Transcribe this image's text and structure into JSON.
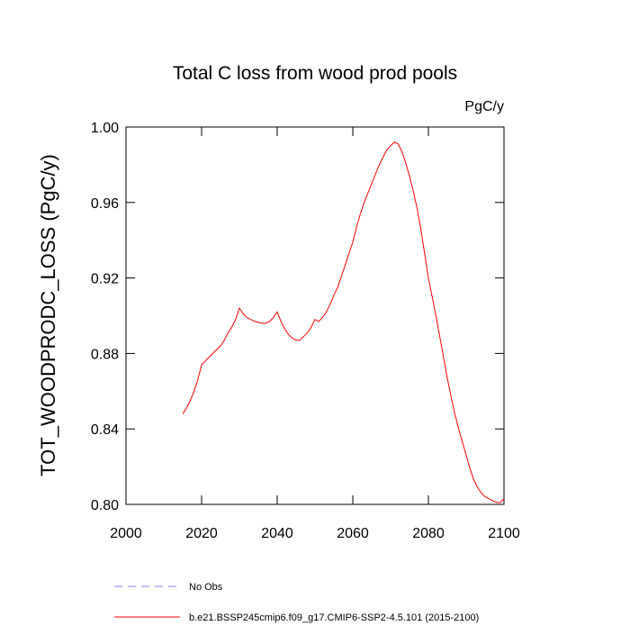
{
  "chart_data": {
    "type": "line",
    "title": "Total C loss from wood prod pools",
    "units": "PgC/y",
    "y_label": "TOT_WOODPRODC_LOSS  (PgC/y)",
    "x": [
      2015,
      2016,
      2017,
      2018,
      2019,
      2020,
      2021,
      2022,
      2023,
      2024,
      2025,
      2026,
      2027,
      2028,
      2029,
      2030,
      2031,
      2032,
      2033,
      2034,
      2035,
      2036,
      2037,
      2038,
      2039,
      2040,
      2041,
      2042,
      2043,
      2044,
      2045,
      2046,
      2047,
      2048,
      2049,
      2050,
      2051,
      2052,
      2053,
      2054,
      2055,
      2056,
      2057,
      2058,
      2059,
      2060,
      2061,
      2062,
      2063,
      2064,
      2065,
      2066,
      2067,
      2068,
      2069,
      2070,
      2071,
      2072,
      2073,
      2074,
      2075,
      2076,
      2077,
      2078,
      2079,
      2080,
      2081,
      2082,
      2083,
      2084,
      2085,
      2086,
      2087,
      2088,
      2089,
      2090,
      2091,
      2092,
      2093,
      2094,
      2095,
      2096,
      2097,
      2098,
      2099,
      2100
    ],
    "series": [
      {
        "name": "b.e21.BSSP245cmip6.f09_g17.CMIP6-SSP2-4.5.101 (2015-2100)",
        "color": "#ff0000",
        "values": [
          0.848,
          0.851,
          0.855,
          0.86,
          0.866,
          0.874,
          0.876,
          0.878,
          0.88,
          0.882,
          0.884,
          0.887,
          0.891,
          0.894,
          0.898,
          0.904,
          0.901,
          0.899,
          0.898,
          0.897,
          0.8965,
          0.896,
          0.896,
          0.897,
          0.899,
          0.902,
          0.897,
          0.893,
          0.89,
          0.888,
          0.887,
          0.887,
          0.889,
          0.891,
          0.894,
          0.898,
          0.897,
          0.899,
          0.902,
          0.906,
          0.911,
          0.915,
          0.921,
          0.927,
          0.933,
          0.939,
          0.947,
          0.954,
          0.96,
          0.965,
          0.97,
          0.975,
          0.98,
          0.984,
          0.988,
          0.99,
          0.992,
          0.991,
          0.987,
          0.981,
          0.974,
          0.966,
          0.957,
          0.946,
          0.933,
          0.92,
          0.91,
          0.9,
          0.889,
          0.878,
          0.867,
          0.857,
          0.848,
          0.84,
          0.833,
          0.826,
          0.819,
          0.813,
          0.809,
          0.806,
          0.804,
          0.803,
          0.802,
          0.801,
          0.801,
          0.803
        ]
      }
    ],
    "legend_items": [
      {
        "name": "No Obs",
        "color": "#7f7fff",
        "dashed": true
      },
      {
        "name": "b.e21.BSSP245cmip6.f09_g17.CMIP6-SSP2-4.5.101 (2015-2100)",
        "color": "#ff0000",
        "dashed": false
      }
    ],
    "xlim": [
      2000,
      2100
    ],
    "xticks": [
      2000,
      2020,
      2040,
      2060,
      2080,
      2100
    ],
    "ylim": [
      0.8,
      1.0
    ],
    "yticks": [
      {
        "value": 0.8,
        "label": "0.80"
      },
      0.84,
      0.88,
      0.92,
      0.96,
      {
        "value": 1.0,
        "label": "1.00"
      }
    ]
  }
}
